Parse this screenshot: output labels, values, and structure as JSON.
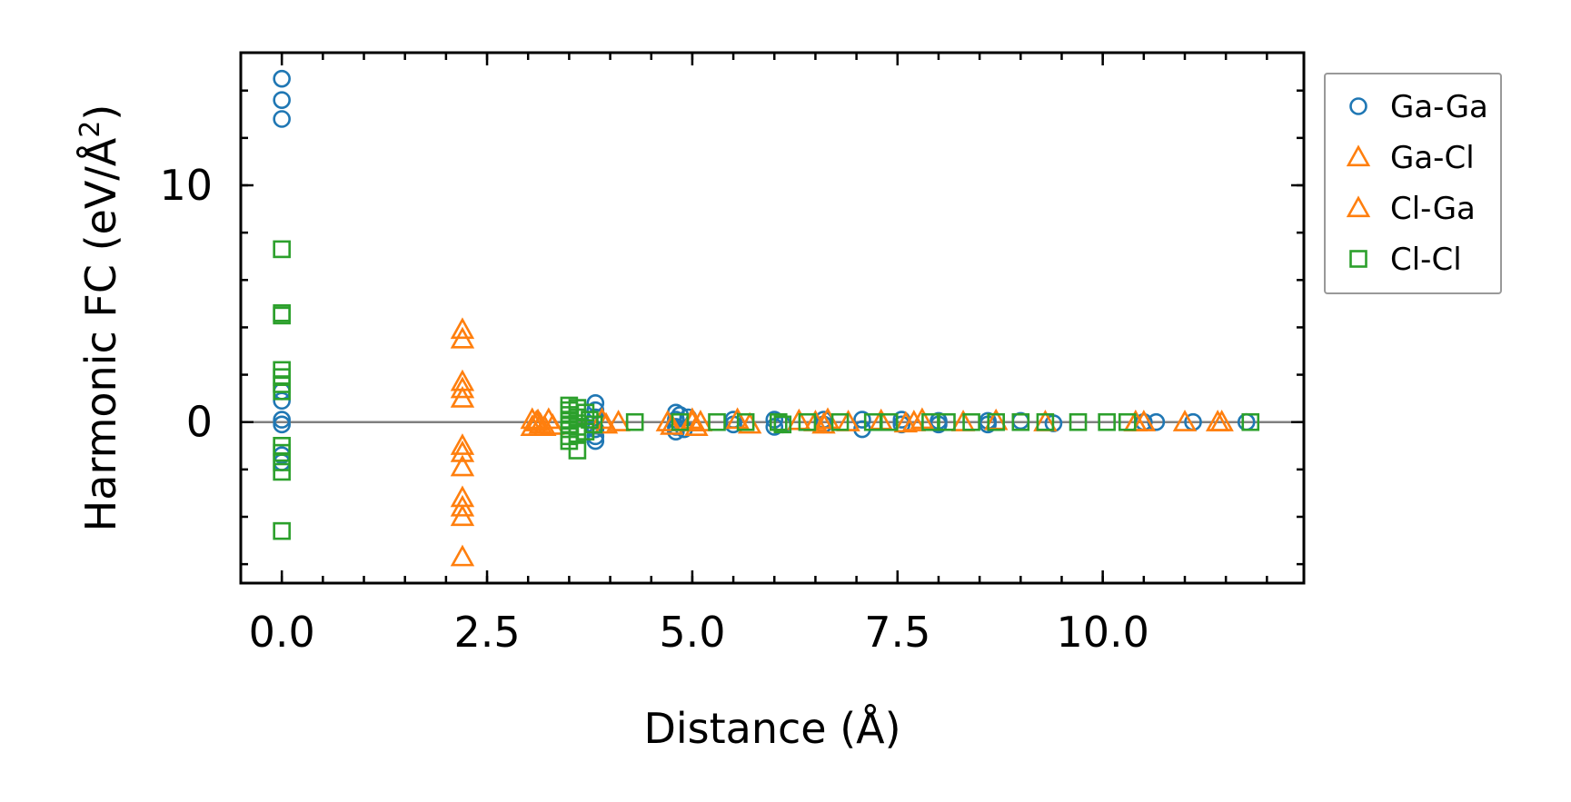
{
  "chart_data": {
    "type": "scatter",
    "xlabel": "Distance (Å)",
    "ylabel": "Harmonic FC (eV/Å²)",
    "ylabel_main": "Harmonic FC (eV/Å",
    "ylabel_sup": "2",
    "ylabel_close": ")",
    "xlim": [
      -0.5,
      12.45
    ],
    "ylim": [
      -6.8,
      15.6
    ],
    "x_ticks": [
      0.0,
      2.5,
      5.0,
      7.5,
      10.0
    ],
    "x_tick_labels": [
      "0.0",
      "2.5",
      "5.0",
      "7.5",
      "10.0"
    ],
    "x_minor_step": 0.5,
    "y_ticks": [
      0,
      10
    ],
    "y_tick_labels": [
      "0",
      "10"
    ],
    "y_minor_step": 2,
    "zero_line": true,
    "legend_position": "outside-right",
    "series": [
      {
        "name": "Ga-Ga",
        "marker": "circle",
        "color": "#1f77b4",
        "points": [
          [
            0.0,
            14.5
          ],
          [
            0.0,
            13.6
          ],
          [
            0.0,
            12.8
          ],
          [
            0.0,
            1.3
          ],
          [
            0.0,
            0.9
          ],
          [
            0.0,
            0.1
          ],
          [
            0.0,
            -0.1
          ],
          [
            0.0,
            -1.4
          ],
          [
            0.0,
            -1.7
          ],
          [
            3.82,
            0.8
          ],
          [
            3.82,
            0.5
          ],
          [
            3.82,
            0.2
          ],
          [
            3.82,
            -0.3
          ],
          [
            3.82,
            -0.6
          ],
          [
            3.82,
            -0.8
          ],
          [
            4.8,
            0.4
          ],
          [
            4.8,
            0.1
          ],
          [
            4.8,
            -0.2
          ],
          [
            4.8,
            -0.4
          ],
          [
            4.85,
            0.3
          ],
          [
            4.9,
            -0.3
          ],
          [
            4.95,
            0.2
          ],
          [
            5.5,
            0.1
          ],
          [
            5.5,
            -0.1
          ],
          [
            6.0,
            0.1
          ],
          [
            6.0,
            -0.2
          ],
          [
            6.1,
            -0.1
          ],
          [
            6.6,
            0.1
          ],
          [
            6.6,
            -0.1
          ],
          [
            7.07,
            0.1
          ],
          [
            7.07,
            -0.3
          ],
          [
            7.55,
            0.1
          ],
          [
            7.55,
            -0.1
          ],
          [
            8.0,
            0.05
          ],
          [
            8.0,
            -0.1
          ],
          [
            8.6,
            0.05
          ],
          [
            8.6,
            -0.1
          ],
          [
            9.0,
            0.05
          ],
          [
            9.4,
            -0.05
          ],
          [
            10.5,
            0.0
          ],
          [
            10.65,
            0.0
          ],
          [
            11.1,
            0.0
          ],
          [
            11.75,
            0.0
          ]
        ]
      },
      {
        "name": "Ga-Cl",
        "marker": "triangle",
        "color": "#ff7f0e",
        "points": [
          [
            2.2,
            3.9
          ],
          [
            2.2,
            3.5
          ],
          [
            2.2,
            1.7
          ],
          [
            2.2,
            1.4
          ],
          [
            2.2,
            1.0
          ],
          [
            2.2,
            -1.0
          ],
          [
            2.2,
            -1.3
          ],
          [
            2.2,
            -1.9
          ],
          [
            2.2,
            -3.2
          ],
          [
            2.2,
            -3.6
          ],
          [
            2.2,
            -4.0
          ],
          [
            2.2,
            -5.7
          ],
          [
            3.05,
            0.1
          ],
          [
            3.05,
            -0.2
          ],
          [
            3.12,
            0.05
          ],
          [
            3.2,
            -0.2
          ],
          [
            3.25,
            0.1
          ],
          [
            3.3,
            -0.15
          ],
          [
            3.9,
            0.1
          ],
          [
            3.95,
            -0.1
          ],
          [
            4.1,
            0.0
          ],
          [
            4.7,
            0.0
          ],
          [
            4.75,
            -0.15
          ],
          [
            5.0,
            0.1
          ],
          [
            5.05,
            -0.2
          ],
          [
            5.1,
            0.0
          ],
          [
            5.55,
            0.1
          ],
          [
            5.7,
            -0.1
          ],
          [
            6.3,
            0.05
          ],
          [
            6.6,
            -0.1
          ],
          [
            6.65,
            0.1
          ],
          [
            6.9,
            0.0
          ],
          [
            7.3,
            0.05
          ],
          [
            7.6,
            -0.05
          ],
          [
            7.8,
            0.1
          ],
          [
            8.3,
            0.0
          ],
          [
            8.7,
            0.05
          ],
          [
            9.3,
            0.0
          ],
          [
            10.4,
            0.0
          ],
          [
            10.5,
            0.0
          ],
          [
            11.0,
            0.0
          ],
          [
            11.4,
            0.0
          ]
        ]
      },
      {
        "name": "Cl-Ga",
        "marker": "triangle",
        "color": "#ff7f0e",
        "points": [
          [
            3.1,
            0.0
          ],
          [
            3.15,
            -0.1
          ],
          [
            5.0,
            0.0
          ],
          [
            6.5,
            0.0
          ],
          [
            7.7,
            0.0
          ],
          [
            10.4,
            0.0
          ],
          [
            11.45,
            0.0
          ]
        ]
      },
      {
        "name": "Cl-Cl",
        "marker": "square",
        "color": "#2ca02c",
        "points": [
          [
            0.0,
            7.3
          ],
          [
            0.0,
            4.6
          ],
          [
            0.0,
            4.5
          ],
          [
            0.0,
            2.2
          ],
          [
            0.0,
            1.9
          ],
          [
            0.0,
            1.6
          ],
          [
            0.0,
            1.3
          ],
          [
            0.0,
            -1.0
          ],
          [
            0.0,
            -1.3
          ],
          [
            0.0,
            -1.7
          ],
          [
            0.0,
            -2.1
          ],
          [
            0.0,
            -4.6
          ],
          [
            3.5,
            0.7
          ],
          [
            3.5,
            0.5
          ],
          [
            3.5,
            0.3
          ],
          [
            3.5,
            0.1
          ],
          [
            3.5,
            -0.1
          ],
          [
            3.5,
            -0.3
          ],
          [
            3.5,
            -0.6
          ],
          [
            3.5,
            -0.8
          ],
          [
            3.6,
            0.6
          ],
          [
            3.6,
            0.2
          ],
          [
            3.6,
            -0.2
          ],
          [
            3.6,
            -0.5
          ],
          [
            3.6,
            -1.2
          ],
          [
            3.7,
            0.4
          ],
          [
            3.7,
            -0.4
          ],
          [
            3.75,
            0.1
          ],
          [
            3.8,
            -0.1
          ],
          [
            4.3,
            0.0
          ],
          [
            4.85,
            0.0
          ],
          [
            5.3,
            0.0
          ],
          [
            5.65,
            0.0
          ],
          [
            6.05,
            0.0
          ],
          [
            6.1,
            -0.1
          ],
          [
            6.4,
            0.0
          ],
          [
            6.8,
            0.0
          ],
          [
            7.2,
            0.0
          ],
          [
            7.4,
            0.0
          ],
          [
            7.9,
            0.0
          ],
          [
            8.1,
            0.0
          ],
          [
            8.4,
            0.0
          ],
          [
            8.7,
            0.0
          ],
          [
            9.0,
            0.0
          ],
          [
            9.3,
            0.0
          ],
          [
            9.7,
            0.0
          ],
          [
            10.05,
            0.0
          ],
          [
            10.3,
            0.0
          ],
          [
            11.8,
            0.0
          ]
        ]
      }
    ]
  }
}
